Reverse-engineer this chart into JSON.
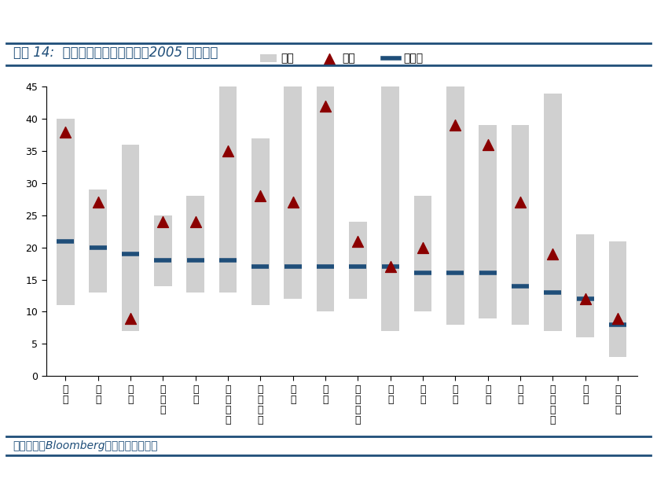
{
  "title": "图表 14:  主要市场估值分布情况（2005 年至今）",
  "footnote": "资料来源：Bloomberg，国盛证券研究所",
  "categories": [
    "日\n本",
    "印\n度",
    "印\n尼",
    "加\n拿\n大",
    "美\n国",
    "澳\n大\n利\n亚",
    "发\n达\n市\n场",
    "英\n国",
    "法\n国",
    "马\n来\n西\n亚",
    "沪\n股",
    "泰\n国",
    "德\n国",
    "欧\n洲",
    "韩\n国",
    "新\n兴\n市\n场",
    "港\n股",
    "俄\n罗\n斯"
  ],
  "bar_min": [
    11,
    13,
    7,
    14,
    13,
    13,
    11,
    12,
    10,
    12,
    7,
    10,
    8,
    9,
    8,
    7,
    6,
    3
  ],
  "bar_max": [
    40,
    29,
    36,
    25,
    28,
    45,
    37,
    45,
    45,
    24,
    45,
    28,
    45,
    39,
    39,
    44,
    22,
    21
  ],
  "current": [
    38,
    27,
    9,
    24,
    24,
    35,
    28,
    27,
    42,
    21,
    17,
    20,
    39,
    36,
    27,
    19,
    12,
    9
  ],
  "median": [
    21,
    20,
    19,
    18,
    18,
    18,
    17,
    17,
    17,
    17,
    17,
    16,
    16,
    16,
    14,
    13,
    12,
    8
  ],
  "bar_color": "#d0d0d0",
  "current_color": "#8b0000",
  "median_color": "#1f4e79",
  "ylim": [
    0,
    45
  ],
  "yticks": [
    0,
    5,
    10,
    15,
    20,
    25,
    30,
    35,
    40,
    45
  ],
  "legend_max_label": "最大",
  "legend_current_label": "现值",
  "legend_median_label": "中位数",
  "title_color": "#1f4e79",
  "footer_color": "#1f4e79",
  "bg_color": "#ffffff"
}
